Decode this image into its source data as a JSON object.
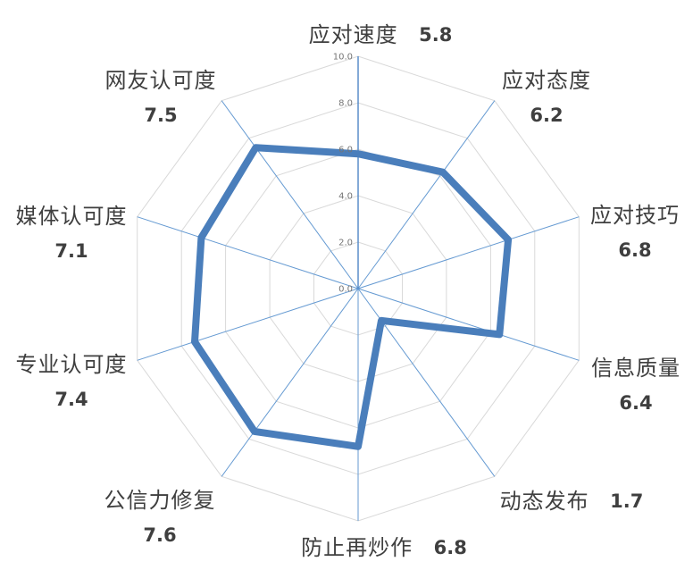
{
  "chart_data": {
    "type": "radar",
    "categories": [
      "应对速度",
      "应对态度",
      "应对技巧",
      "信息质量",
      "动态发布",
      "防止再炒作",
      "公信力修复",
      "专业认可度",
      "媒体认可度",
      "网友认可度"
    ],
    "series": [
      {
        "name": "",
        "values": [
          5.8,
          6.2,
          6.8,
          6.4,
          1.7,
          6.8,
          7.6,
          7.4,
          7.1,
          7.5
        ]
      }
    ],
    "values": [
      5.8,
      6.2,
      6.8,
      6.4,
      1.7,
      6.8,
      7.6,
      7.4,
      7.1,
      7.5
    ],
    "value_labels": [
      "5.8",
      "6.2",
      "6.8",
      "6.4",
      "1.7",
      "6.8",
      "7.6",
      "7.4",
      "7.1",
      "7.5"
    ],
    "radial_axis": {
      "min": 0,
      "max": 10,
      "tick_interval": 2,
      "tick_labels": [
        "0.0",
        "2.0",
        "4.0",
        "6.0",
        "8.0",
        "10.0"
      ]
    },
    "layout": {
      "grid": "on",
      "legend": "none",
      "start_angle_deg": 0,
      "direction": "clockwise"
    },
    "colors": {
      "series_line": "#4a7ebb",
      "spoke_line": "#659ad2",
      "axis_line": "#4f86c6",
      "ring_line": "#d9d9d9",
      "tick_text": "#757575",
      "label_text": "#3f3f3f"
    }
  }
}
